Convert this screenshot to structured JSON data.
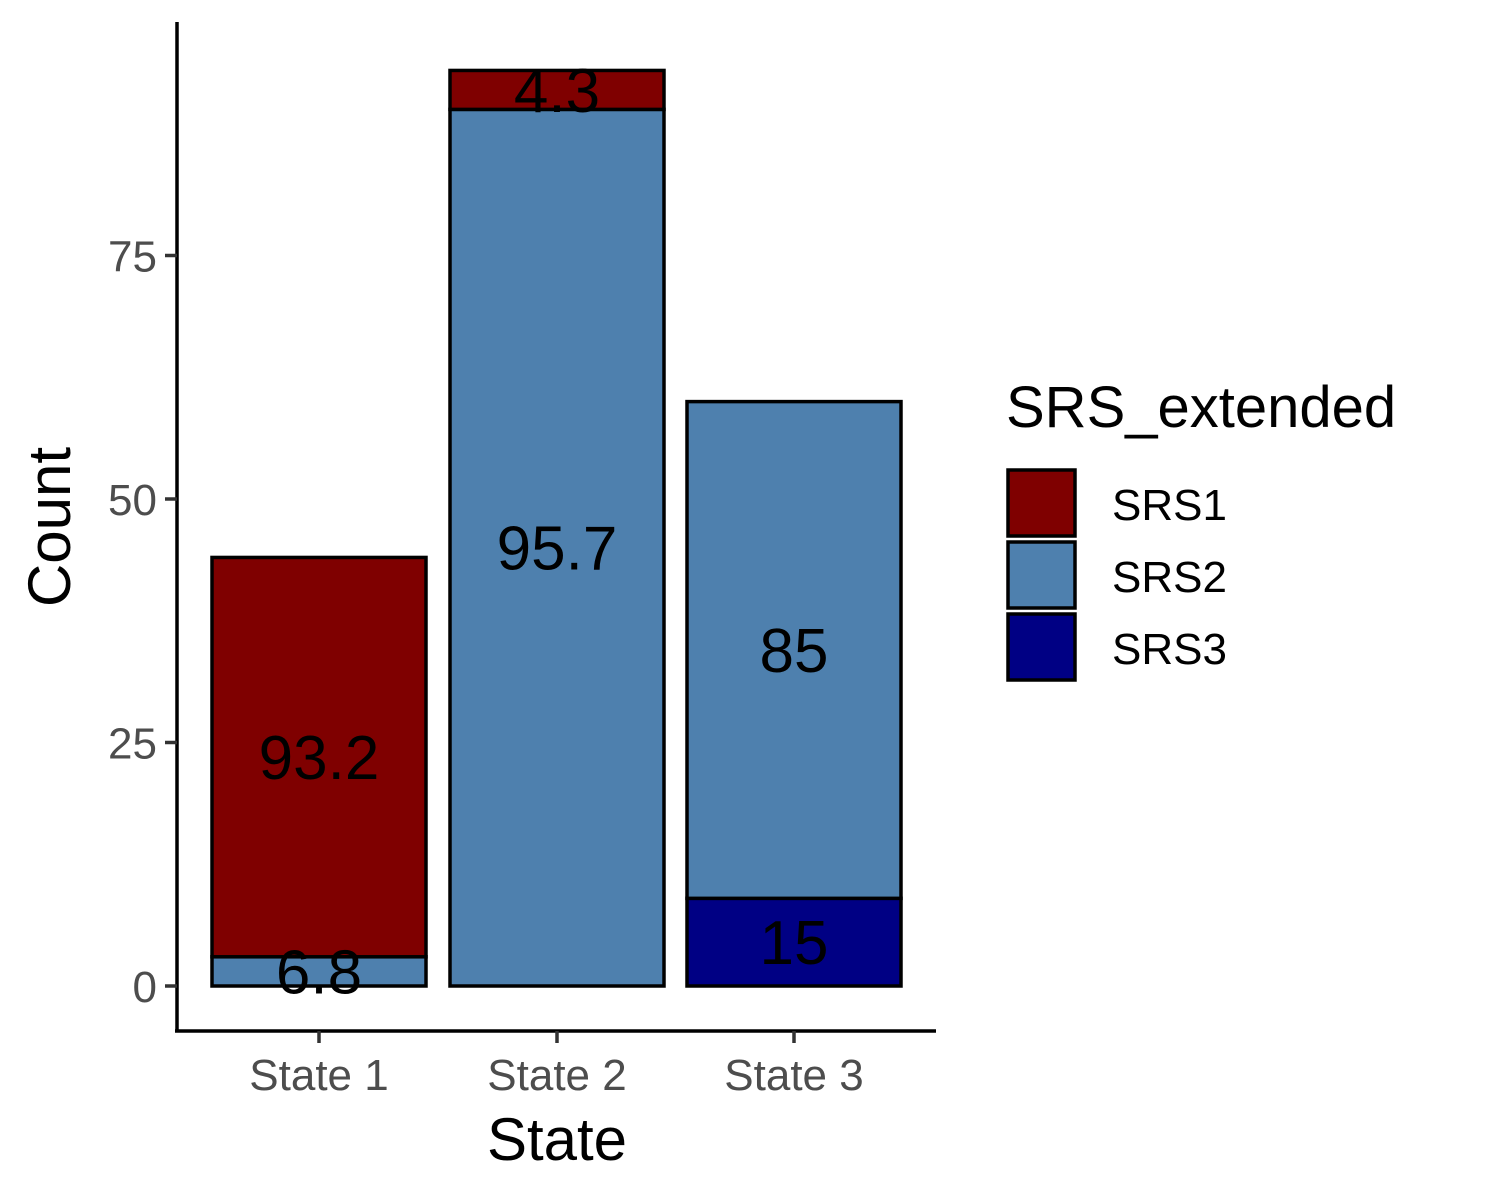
{
  "chart_data": {
    "type": "bar",
    "stacked": true,
    "xlabel": "State",
    "ylabel": "Count",
    "ylim": [
      0,
      95
    ],
    "yticks": [
      0,
      25,
      50,
      75
    ],
    "categories": [
      "State 1",
      "State 2",
      "State 3"
    ],
    "series": [
      {
        "name": "SRS1",
        "color": "#7f0000",
        "values": [
          41,
          4,
          0
        ],
        "labels": [
          "93.2",
          "4.3",
          ""
        ]
      },
      {
        "name": "SRS2",
        "color": "#4e80ae",
        "values": [
          3,
          90,
          51
        ],
        "labels": [
          "6.8",
          "95.7",
          "85"
        ]
      },
      {
        "name": "SRS3",
        "color": "#000084",
        "values": [
          0,
          0,
          9
        ],
        "labels": [
          "",
          "",
          "15"
        ]
      }
    ],
    "legend": {
      "title": "SRS_extended",
      "position": "right"
    },
    "grid": false
  }
}
